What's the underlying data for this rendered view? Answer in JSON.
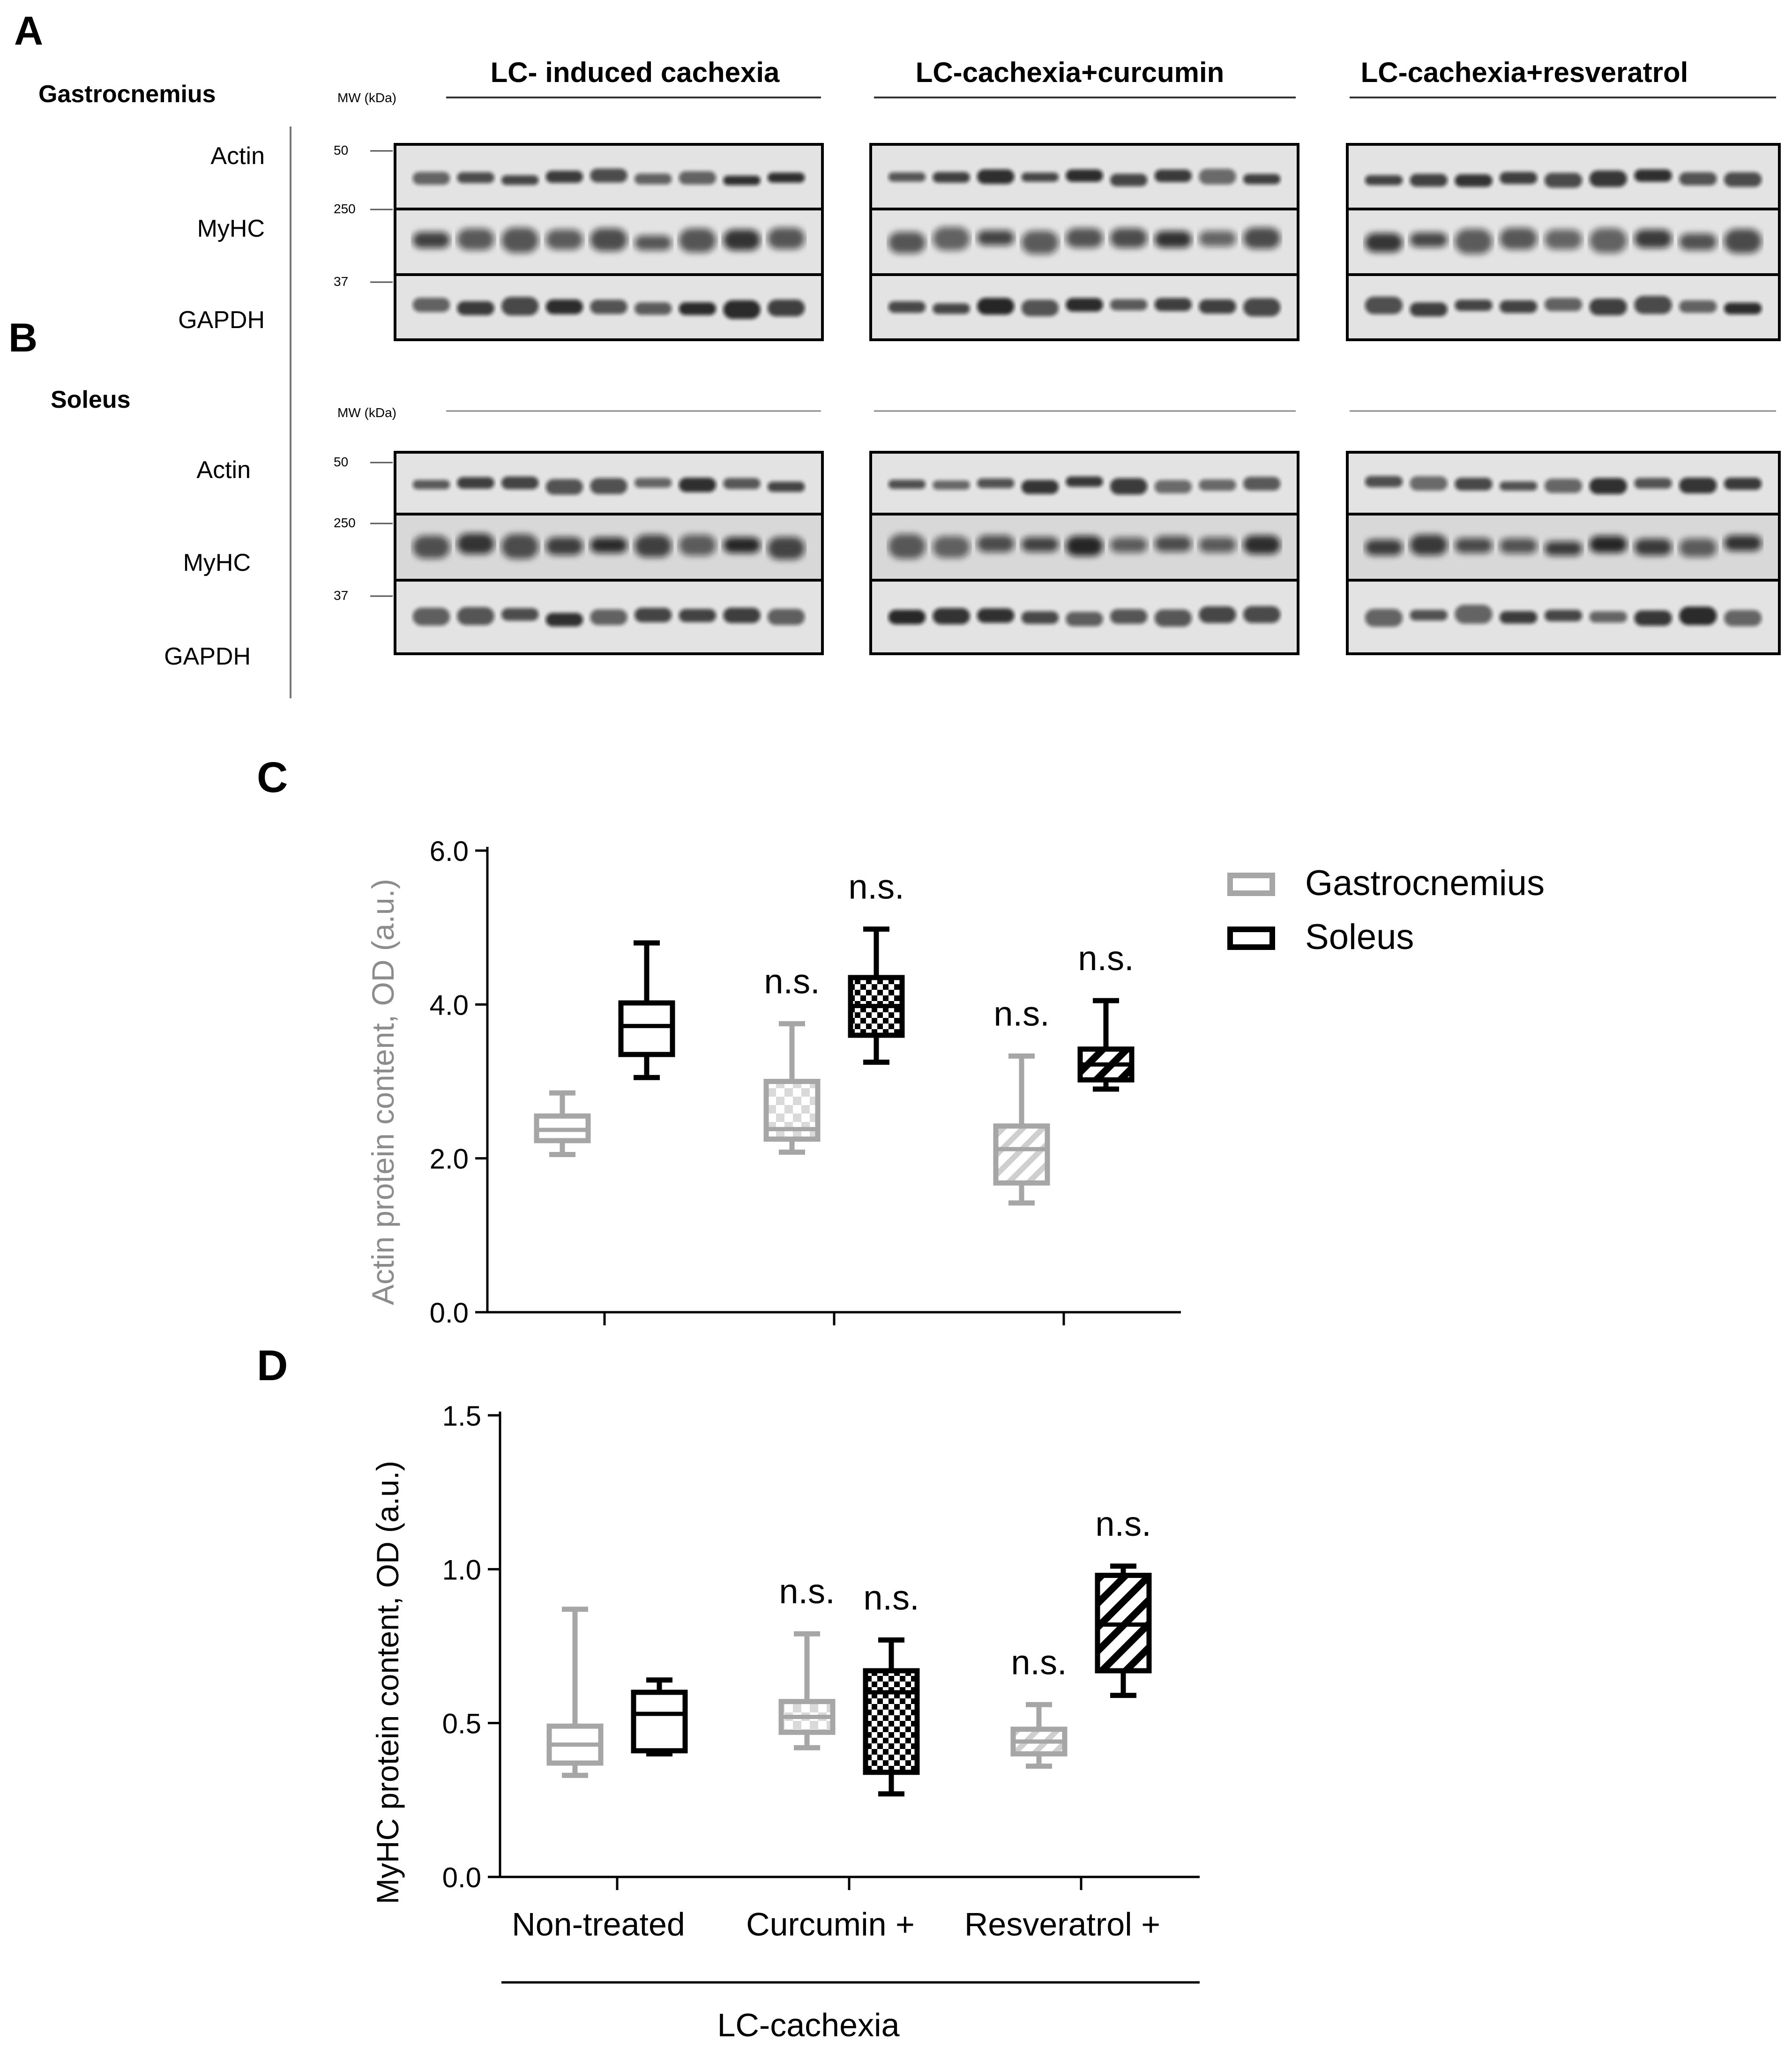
{
  "panel_labels": {
    "a": "A",
    "b": "B",
    "c": "C",
    "d": "D"
  },
  "blot": {
    "tissue_a": "Gastrocnemius",
    "tissue_b": "Soleus",
    "mw_label": "MW (kDa)",
    "group_headers": [
      "LC- induced cachexia",
      "LC-cachexia+curcumin",
      "LC-cachexia+resveratrol"
    ],
    "rows_a": [
      "Actin",
      "MyHC",
      "GAPDH"
    ],
    "rows_b": [
      "Actin",
      "MyHC",
      "GAPDH"
    ],
    "markers": [
      "50",
      "250",
      "37"
    ],
    "lanes_per_group": 9
  },
  "chart_data": [
    {
      "type": "box",
      "panel": "C",
      "ylabel": "Actin protein content, OD (a.u.)",
      "ylim": [
        0,
        6
      ],
      "yticks": [
        "0.0",
        "2.0",
        "4.0",
        "6.0"
      ],
      "legend": {
        "position": "top-right",
        "entries": [
          "Gastrocnemius",
          "Soleus"
        ]
      },
      "colors": {
        "Gastrocnemius": "#a6a6a6",
        "Soleus": "#000000"
      },
      "groups": [
        {
          "pattern": "open",
          "boxes": [
            {
              "series": "Gastrocnemius",
              "min": 2.05,
              "q1": 2.23,
              "median": 2.37,
              "q3": 2.55,
              "max": 2.85,
              "annotation": ""
            },
            {
              "series": "Soleus",
              "min": 3.05,
              "q1": 3.35,
              "median": 3.72,
              "q3": 4.02,
              "max": 4.8,
              "annotation": ""
            }
          ]
        },
        {
          "pattern": "checker",
          "boxes": [
            {
              "series": "Gastrocnemius",
              "min": 2.08,
              "q1": 2.25,
              "median": 2.38,
              "q3": 3.0,
              "max": 3.75,
              "annotation": "n.s."
            },
            {
              "series": "Soleus",
              "min": 3.25,
              "q1": 3.6,
              "median": 3.98,
              "q3": 4.35,
              "max": 4.98,
              "annotation": "n.s."
            }
          ]
        },
        {
          "pattern": "hatch",
          "boxes": [
            {
              "series": "Gastrocnemius",
              "min": 1.42,
              "q1": 1.68,
              "median": 2.12,
              "q3": 2.42,
              "max": 3.33,
              "annotation": "n.s."
            },
            {
              "series": "Soleus",
              "min": 2.9,
              "q1": 3.02,
              "median": 3.22,
              "q3": 3.42,
              "max": 4.05,
              "annotation": "n.s."
            }
          ]
        }
      ]
    },
    {
      "type": "box",
      "panel": "D",
      "ylabel": "MyHC protein content, OD (a.u.)",
      "ylim": [
        0,
        1.5
      ],
      "yticks": [
        "0.0",
        "0.5",
        "1.0",
        "1.5"
      ],
      "categories": [
        "Non-treated",
        "Curcumin +",
        "Resveratrol +"
      ],
      "xgroup_label": "LC-cachexia",
      "colors": {
        "Gastrocnemius": "#a6a6a6",
        "Soleus": "#000000"
      },
      "groups": [
        {
          "pattern": "open",
          "boxes": [
            {
              "series": "Gastrocnemius",
              "min": 0.33,
              "q1": 0.37,
              "median": 0.43,
              "q3": 0.49,
              "max": 0.87,
              "annotation": ""
            },
            {
              "series": "Soleus",
              "min": 0.4,
              "q1": 0.41,
              "median": 0.53,
              "q3": 0.6,
              "max": 0.64,
              "annotation": ""
            }
          ]
        },
        {
          "pattern": "checker",
          "boxes": [
            {
              "series": "Gastrocnemius",
              "min": 0.42,
              "q1": 0.47,
              "median": 0.52,
              "q3": 0.57,
              "max": 0.79,
              "annotation": "n.s."
            },
            {
              "series": "Soleus",
              "min": 0.27,
              "q1": 0.34,
              "median": 0.6,
              "q3": 0.67,
              "max": 0.77,
              "annotation": "n.s."
            }
          ]
        },
        {
          "pattern": "hatch",
          "boxes": [
            {
              "series": "Gastrocnemius",
              "min": 0.36,
              "q1": 0.4,
              "median": 0.44,
              "q3": 0.48,
              "max": 0.56,
              "annotation": "n.s."
            },
            {
              "series": "Soleus",
              "min": 0.59,
              "q1": 0.67,
              "median": 0.82,
              "q3": 0.98,
              "max": 1.01,
              "annotation": "n.s."
            }
          ]
        }
      ]
    }
  ]
}
